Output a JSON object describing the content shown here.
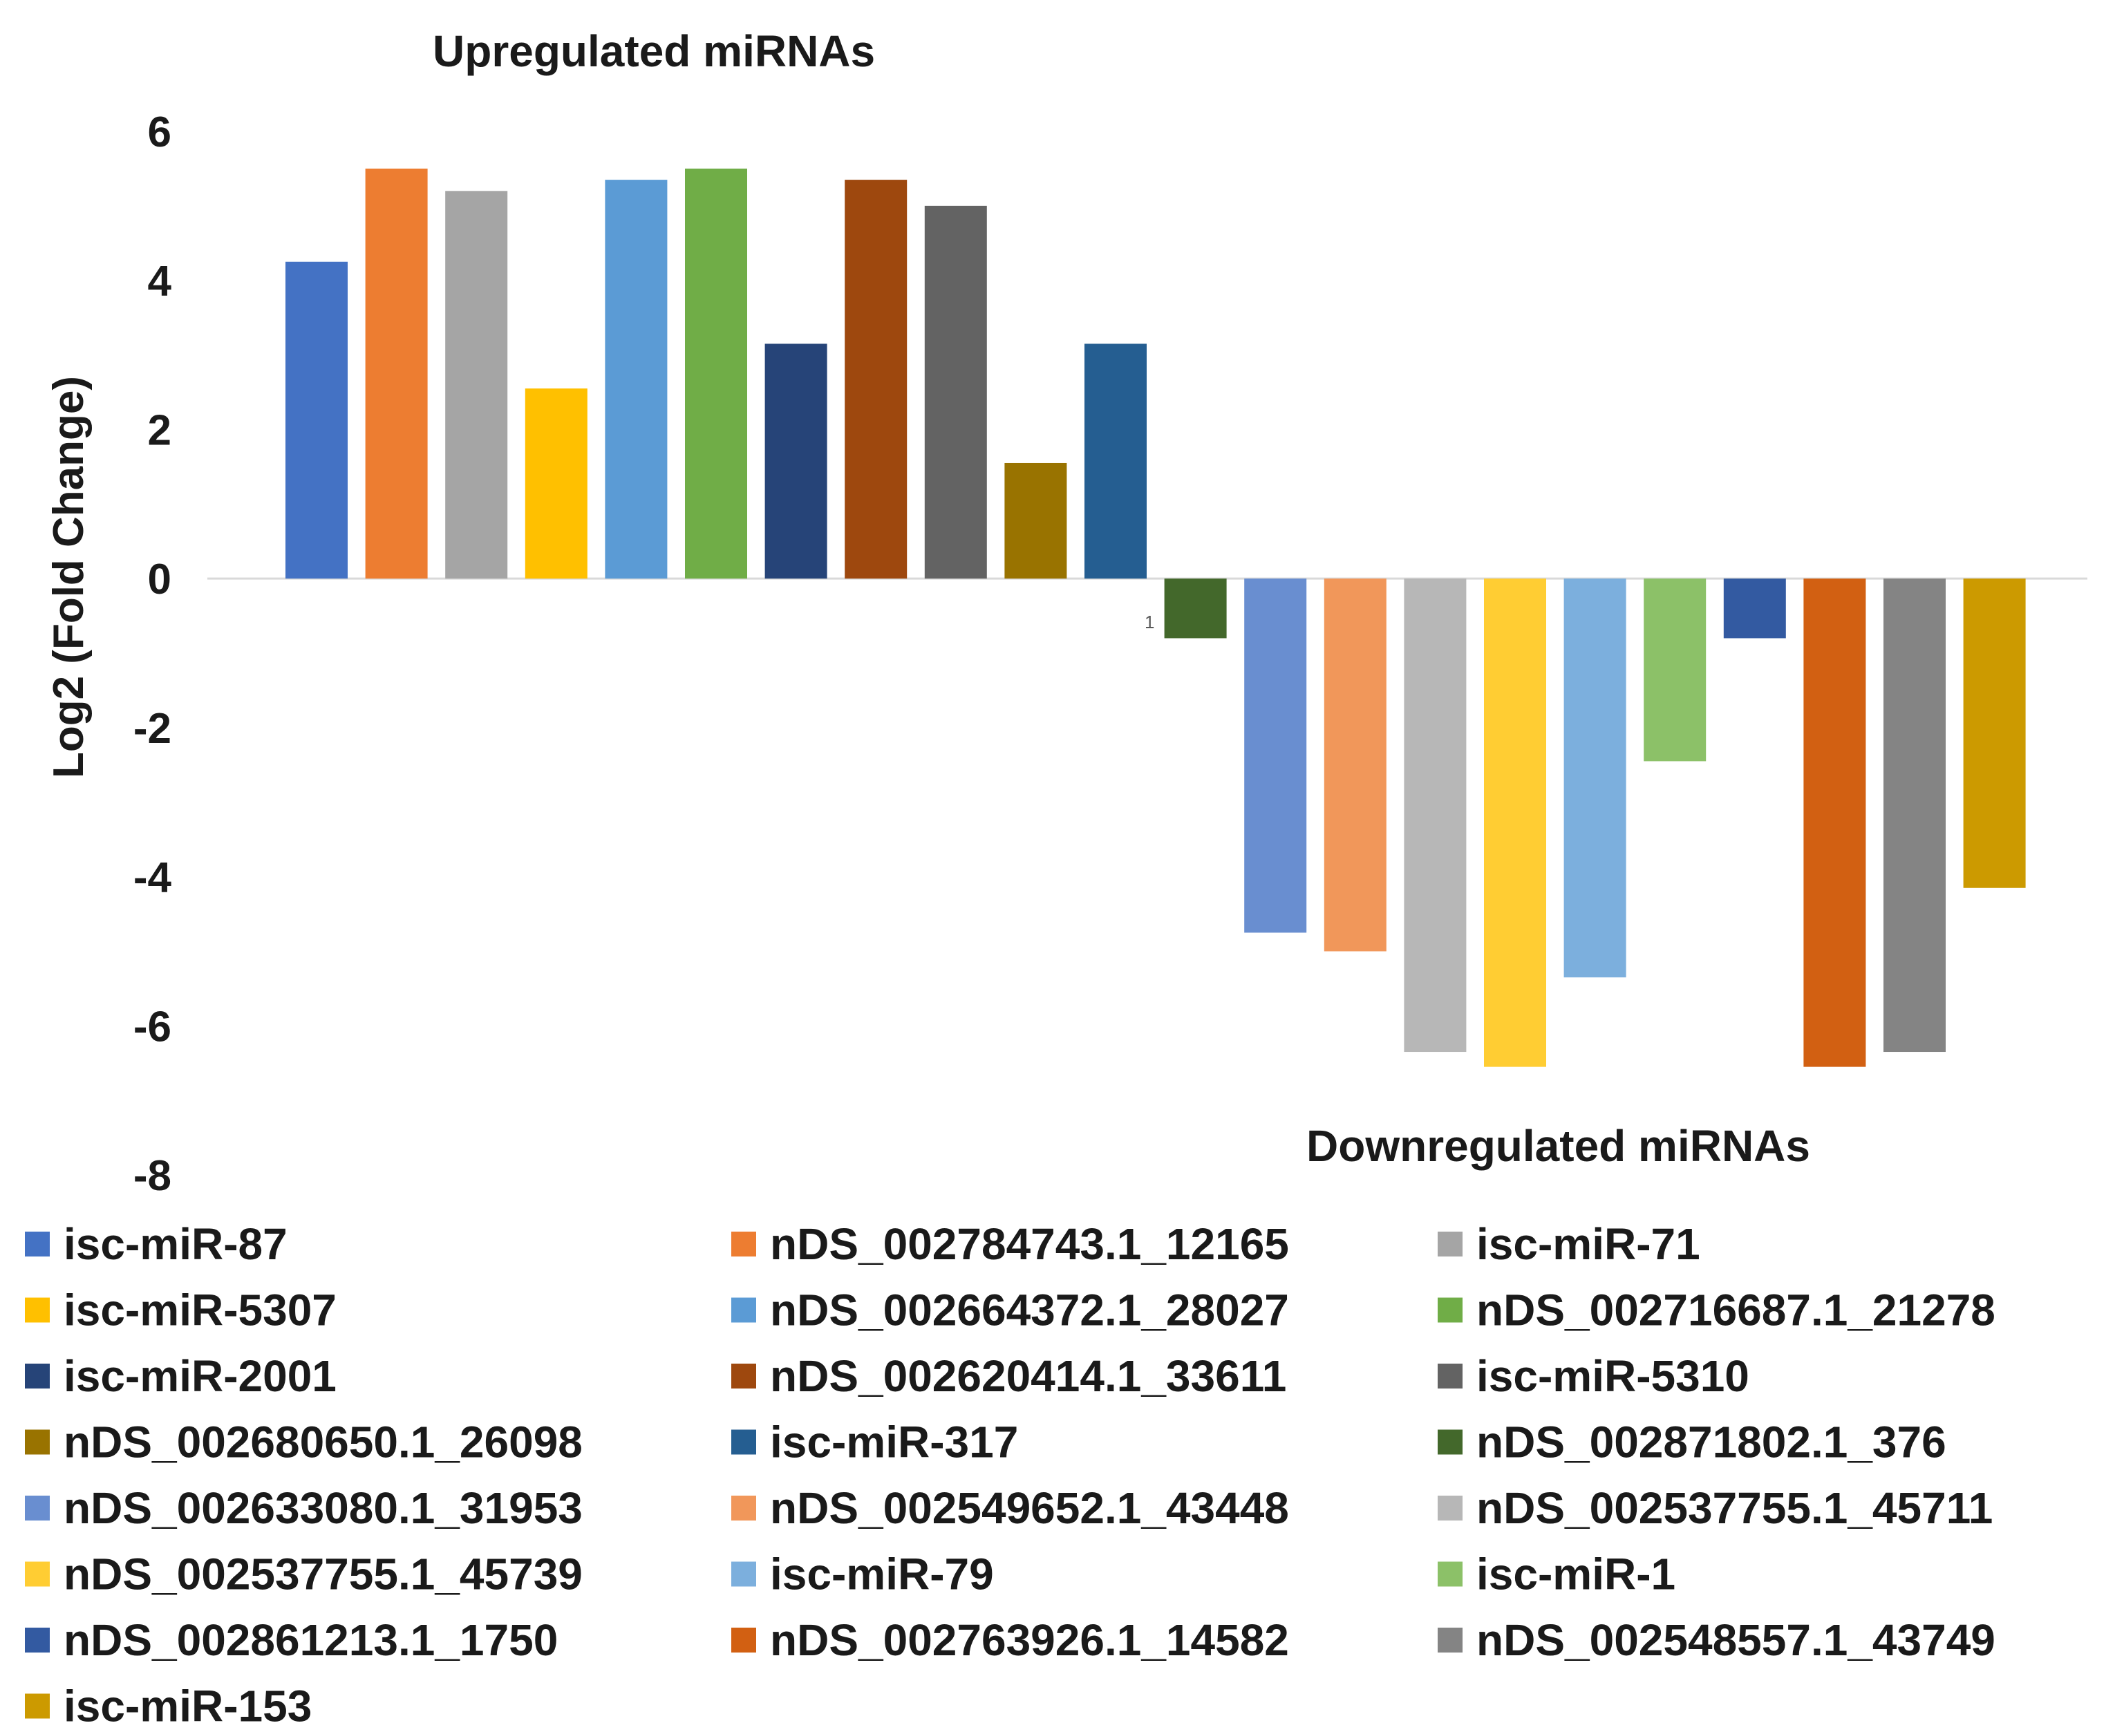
{
  "chart_data": {
    "type": "bar",
    "annotations": [
      "Upregulated miRNAs",
      "Downregulated miRNAs"
    ],
    "ylabel": "Log2 (Fold Change)",
    "xlabel": "",
    "ylim": [
      -8,
      6
    ],
    "yticks": [
      6,
      4,
      2,
      0,
      -2,
      -4,
      -6,
      -8
    ],
    "category_label": "1",
    "legend_position": "bottom",
    "series": [
      {
        "name": "isc-miR-87",
        "value": 4.25,
        "color": "#4472C4"
      },
      {
        "name": "nDS_002784743.1_12165",
        "value": 5.5,
        "color": "#ED7D31"
      },
      {
        "name": "isc-miR-71",
        "value": 5.2,
        "color": "#A5A5A5"
      },
      {
        "name": "isc-miR-5307",
        "value": 2.55,
        "color": "#FFC000"
      },
      {
        "name": "nDS_002664372.1_28027",
        "value": 5.35,
        "color": "#5B9BD5"
      },
      {
        "name": "nDS_002716687.1_21278",
        "value": 5.5,
        "color": "#70AD47"
      },
      {
        "name": "isc-miR-2001",
        "value": 3.15,
        "color": "#264478"
      },
      {
        "name": "nDS_002620414.1_33611",
        "value": 5.35,
        "color": "#9E480E"
      },
      {
        "name": "isc-miR-5310",
        "value": 5.0,
        "color": "#636363"
      },
      {
        "name": "nDS_002680650.1_26098",
        "value": 1.55,
        "color": "#997300"
      },
      {
        "name": "isc-miR-317",
        "value": 3.15,
        "color": "#255E91"
      },
      {
        "name": "nDS_002871802.1_376",
        "value": -0.8,
        "color": "#43682B"
      },
      {
        "name": "nDS_002633080.1_31953",
        "value": -4.75,
        "color": "#698ED0"
      },
      {
        "name": "nDS_002549652.1_43448",
        "value": -5.0,
        "color": "#F1975A"
      },
      {
        "name": "nDS_002537755.1_45711",
        "value": -6.35,
        "color": "#B7B7B7"
      },
      {
        "name": "nDS_002537755.1_45739",
        "value": -6.55,
        "color": "#FFCD33"
      },
      {
        "name": "isc-miR-79",
        "value": -5.35,
        "color": "#7CAFDD"
      },
      {
        "name": "isc-miR-1",
        "value": -2.45,
        "color": "#8CC168"
      },
      {
        "name": "nDS_002861213.1_1750",
        "value": -0.8,
        "color": "#335AA1"
      },
      {
        "name": "nDS_002763926.1_14582",
        "value": -6.55,
        "color": "#D26012"
      },
      {
        "name": "nDS_002548557.1_43749",
        "value": -6.35,
        "color": "#848484"
      },
      {
        "name": "isc-miR-153",
        "value": -4.15,
        "color": "#CC9A00"
      }
    ]
  }
}
